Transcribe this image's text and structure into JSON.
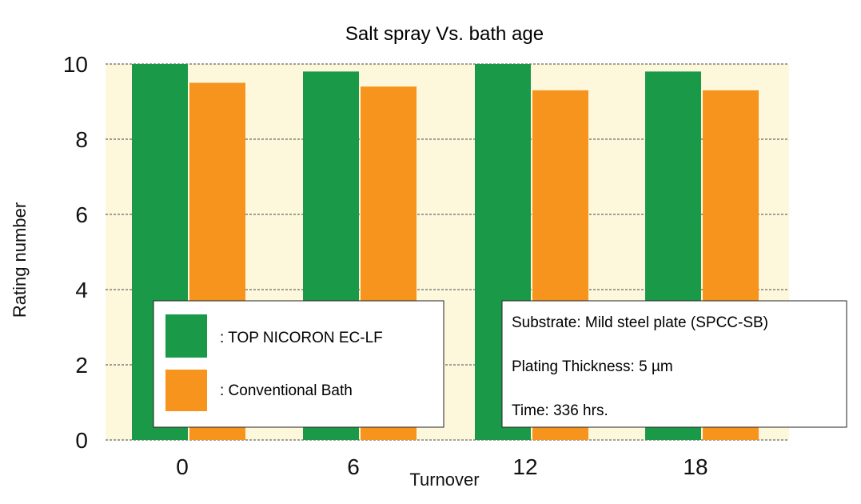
{
  "chart_data": {
    "type": "bar",
    "title": "Salt spray Vs. bath age",
    "xlabel": "Turnover",
    "ylabel": "Rating number",
    "categories": [
      "0",
      "6",
      "12",
      "18"
    ],
    "series": [
      {
        "name": ": TOP NICORON EC-LF",
        "values": [
          10,
          9.8,
          10,
          9.8
        ],
        "color": "#1a9a48"
      },
      {
        "name": ": Conventional Bath",
        "values": [
          9.5,
          9.4,
          9.3,
          9.3
        ],
        "color": "#f7941d"
      }
    ],
    "ylim": [
      0,
      10
    ],
    "yticks": [
      "0",
      "2",
      "4",
      "6",
      "8",
      "10"
    ],
    "grid": "horizontal dashed",
    "plot_background": "#fdf7dc",
    "legend_position": "bottom-left"
  },
  "notes": {
    "substrate": "Substrate: Mild steel plate (SPCC-SB)",
    "thickness": "Plating Thickness: 5 µm",
    "time": "Time: 336 hrs."
  }
}
